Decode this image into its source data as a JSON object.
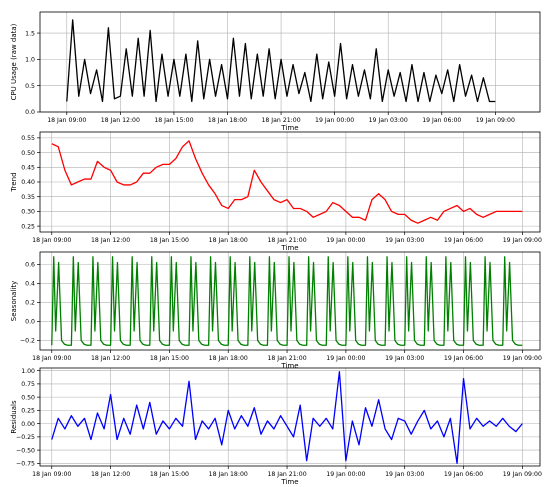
{
  "chart_data": [
    {
      "type": "line",
      "xlabel": "Time",
      "ylabel": "CPU Usage (raw data)",
      "color": "#000000",
      "grid": true,
      "xlim": [
        "18 Jan 09:00",
        "19 Jan 09:00"
      ],
      "ylim": [
        0.0,
        1.9
      ],
      "x_ticks": [
        "18 Jan 09:00",
        "18 Jan 12:00",
        "18 Jan 15:00",
        "18 Jan 18:00",
        "18 Jan 21:00",
        "19 Jan 00:00",
        "19 Jan 03:00",
        "19 Jan 06:00",
        "19 Jan 09:00"
      ],
      "y_ticks": [
        "0.0",
        "0.5",
        "1.0",
        "1.5"
      ],
      "y_tick_values": [
        0.0,
        0.5,
        1.0,
        1.5
      ],
      "x_hours": [
        0.0,
        0.33,
        0.67,
        1.0,
        1.33,
        1.67,
        2.0,
        2.33,
        2.67,
        3.0,
        3.33,
        3.67,
        4.0,
        4.33,
        4.67,
        5.0,
        5.33,
        5.67,
        6.0,
        6.33,
        6.67,
        7.0,
        7.33,
        7.67,
        8.0,
        8.33,
        8.67,
        9.0,
        9.33,
        9.67,
        10.0,
        10.33,
        10.67,
        11.0,
        11.33,
        11.67,
        12.0,
        12.33,
        12.67,
        13.0,
        13.33,
        13.67,
        14.0,
        14.33,
        14.67,
        15.0,
        15.33,
        15.67,
        16.0,
        16.33,
        16.67,
        17.0,
        17.33,
        17.67,
        18.0,
        18.33,
        18.67,
        19.0,
        19.33,
        19.67,
        20.0,
        20.33,
        20.67,
        21.0,
        21.33,
        21.67,
        22.0,
        22.33,
        22.67,
        23.0,
        23.33,
        23.67,
        24.0
      ],
      "values": [
        0.2,
        1.75,
        0.3,
        1.0,
        0.35,
        0.8,
        0.2,
        1.6,
        0.25,
        0.3,
        1.2,
        0.3,
        1.4,
        0.3,
        1.55,
        0.2,
        1.1,
        0.3,
        1.0,
        0.3,
        1.1,
        0.2,
        1.35,
        0.25,
        1.0,
        0.3,
        0.9,
        0.25,
        1.4,
        0.3,
        1.3,
        0.25,
        1.1,
        0.3,
        1.2,
        0.25,
        1.0,
        0.3,
        0.9,
        0.35,
        0.75,
        0.2,
        1.1,
        0.25,
        0.95,
        0.3,
        1.3,
        0.25,
        0.9,
        0.3,
        0.8,
        0.25,
        1.2,
        0.2,
        0.8,
        0.3,
        0.75,
        0.2,
        0.9,
        0.2,
        0.75,
        0.2,
        0.7,
        0.35,
        0.8,
        0.2,
        0.9,
        0.3,
        0.7,
        0.2,
        0.65,
        0.2,
        0.2
      ]
    },
    {
      "type": "line",
      "xlabel": "Time",
      "ylabel": "Trend",
      "color": "#ff0000",
      "grid": true,
      "xlim": [
        "18 Jan 09:00",
        "19 Jan 09:00"
      ],
      "ylim": [
        0.23,
        0.57
      ],
      "x_ticks": [
        "18 Jan 09:00",
        "18 Jan 12:00",
        "18 Jan 15:00",
        "18 Jan 18:00",
        "18 Jan 21:00",
        "19 Jan 00:00",
        "19 Jan 03:00",
        "19 Jan 06:00",
        "19 Jan 09:00"
      ],
      "y_ticks": [
        "0.25",
        "0.30",
        "0.35",
        "0.40",
        "0.45",
        "0.50",
        "0.55"
      ],
      "y_tick_values": [
        0.25,
        0.3,
        0.35,
        0.4,
        0.45,
        0.5,
        0.55
      ],
      "x_hours": [
        0.0,
        0.33,
        0.67,
        1.0,
        1.33,
        1.67,
        2.0,
        2.33,
        2.67,
        3.0,
        3.33,
        3.67,
        4.0,
        4.33,
        4.67,
        5.0,
        5.33,
        5.67,
        6.0,
        6.33,
        6.67,
        7.0,
        7.33,
        7.67,
        8.0,
        8.33,
        8.67,
        9.0,
        9.33,
        9.67,
        10.0,
        10.33,
        10.67,
        11.0,
        11.33,
        11.67,
        12.0,
        12.33,
        12.67,
        13.0,
        13.33,
        13.67,
        14.0,
        14.33,
        14.67,
        15.0,
        15.33,
        15.67,
        16.0,
        16.33,
        16.67,
        17.0,
        17.33,
        17.67,
        18.0,
        18.33,
        18.67,
        19.0,
        19.33,
        19.67,
        20.0,
        20.33,
        20.67,
        21.0,
        21.33,
        21.67,
        22.0,
        22.33,
        22.67,
        23.0,
        23.33,
        23.67,
        24.0
      ],
      "values": [
        0.53,
        0.52,
        0.44,
        0.39,
        0.4,
        0.41,
        0.41,
        0.47,
        0.45,
        0.44,
        0.4,
        0.39,
        0.39,
        0.4,
        0.43,
        0.43,
        0.45,
        0.46,
        0.46,
        0.48,
        0.52,
        0.54,
        0.48,
        0.43,
        0.39,
        0.36,
        0.32,
        0.31,
        0.34,
        0.34,
        0.35,
        0.44,
        0.4,
        0.37,
        0.34,
        0.33,
        0.34,
        0.31,
        0.31,
        0.3,
        0.28,
        0.29,
        0.3,
        0.33,
        0.32,
        0.3,
        0.28,
        0.28,
        0.27,
        0.34,
        0.36,
        0.34,
        0.3,
        0.29,
        0.29,
        0.27,
        0.26,
        0.27,
        0.28,
        0.27,
        0.3,
        0.31,
        0.32,
        0.3,
        0.31,
        0.29,
        0.28,
        0.29,
        0.3,
        0.3,
        0.3,
        0.3,
        0.3
      ]
    },
    {
      "type": "line",
      "xlabel": "Time",
      "ylabel": "Seasonality",
      "color": "#008000",
      "grid": true,
      "xlim": [
        "18 Jan 09:00",
        "19 Jan 09:00"
      ],
      "ylim": [
        -0.3,
        0.73
      ],
      "x_ticks": [
        "18 Jan 09:00",
        "18 Jan 12:00",
        "18 Jan 15:00",
        "18 Jan 18:00",
        "18 Jan 21:00",
        "19 Jan 00:00",
        "19 Jan 03:00",
        "19 Jan 06:00",
        "19 Jan 09:00"
      ],
      "y_ticks": [
        "−0.2",
        "0.0",
        "0.2",
        "0.4",
        "0.6"
      ],
      "y_tick_values": [
        -0.2,
        0.0,
        0.2,
        0.4,
        0.6
      ],
      "pattern": "repeating",
      "period_hours": 1.0,
      "cycle_offsets": [
        0.0,
        0.1,
        0.2,
        0.35,
        0.5,
        0.65,
        0.8,
        1.0
      ],
      "cycle_values": [
        -0.25,
        0.68,
        -0.1,
        0.62,
        -0.2,
        -0.24,
        -0.25,
        -0.25
      ]
    },
    {
      "type": "line",
      "xlabel": "Time",
      "ylabel": "Residuals",
      "color": "#0000ff",
      "grid": true,
      "xlim": [
        "18 Jan 09:00",
        "19 Jan 09:00"
      ],
      "ylim": [
        -0.8,
        1.05
      ],
      "x_ticks": [
        "18 Jan 09:00",
        "18 Jan 12:00",
        "18 Jan 15:00",
        "18 Jan 18:00",
        "18 Jan 21:00",
        "19 Jan 00:00",
        "19 Jan 03:00",
        "19 Jan 06:00",
        "19 Jan 09:00"
      ],
      "y_ticks": [
        "−0.75",
        "−0.50",
        "−0.25",
        "0.00",
        "0.25",
        "0.50",
        "0.75",
        "1.00"
      ],
      "y_tick_values": [
        -0.75,
        -0.5,
        -0.25,
        0.0,
        0.25,
        0.5,
        0.75,
        1.0
      ],
      "x_hours": [
        0.0,
        0.33,
        0.67,
        1.0,
        1.33,
        1.67,
        2.0,
        2.33,
        2.67,
        3.0,
        3.33,
        3.67,
        4.0,
        4.33,
        4.67,
        5.0,
        5.33,
        5.67,
        6.0,
        6.33,
        6.67,
        7.0,
        7.33,
        7.67,
        8.0,
        8.33,
        8.67,
        9.0,
        9.33,
        9.67,
        10.0,
        10.33,
        10.67,
        11.0,
        11.33,
        11.67,
        12.0,
        12.33,
        12.67,
        13.0,
        13.33,
        13.67,
        14.0,
        14.33,
        14.67,
        15.0,
        15.33,
        15.67,
        16.0,
        16.33,
        16.67,
        17.0,
        17.33,
        17.67,
        18.0,
        18.33,
        18.67,
        19.0,
        19.33,
        19.67,
        20.0,
        20.33,
        20.67,
        21.0,
        21.33,
        21.67,
        22.0,
        22.33,
        22.67,
        23.0,
        23.33,
        23.67,
        24.0
      ],
      "values": [
        -0.3,
        0.1,
        -0.1,
        0.15,
        -0.05,
        0.1,
        -0.3,
        0.2,
        -0.1,
        0.55,
        -0.3,
        0.1,
        -0.2,
        0.35,
        -0.1,
        0.4,
        -0.2,
        0.05,
        -0.1,
        0.1,
        -0.05,
        0.8,
        -0.3,
        0.05,
        -0.1,
        0.1,
        -0.4,
        0.25,
        -0.1,
        0.15,
        -0.05,
        0.3,
        -0.2,
        0.05,
        -0.1,
        0.15,
        -0.05,
        -0.25,
        0.35,
        -0.7,
        0.1,
        -0.05,
        0.1,
        -0.1,
        0.98,
        -0.7,
        0.05,
        -0.4,
        0.3,
        -0.05,
        0.45,
        -0.1,
        -0.3,
        0.1,
        0.05,
        -0.2,
        0.05,
        0.25,
        -0.1,
        0.05,
        -0.25,
        0.1,
        -0.75,
        0.85,
        -0.1,
        0.1,
        -0.05,
        0.05,
        -0.05,
        0.1,
        -0.05,
        -0.15,
        0.0
      ]
    }
  ]
}
